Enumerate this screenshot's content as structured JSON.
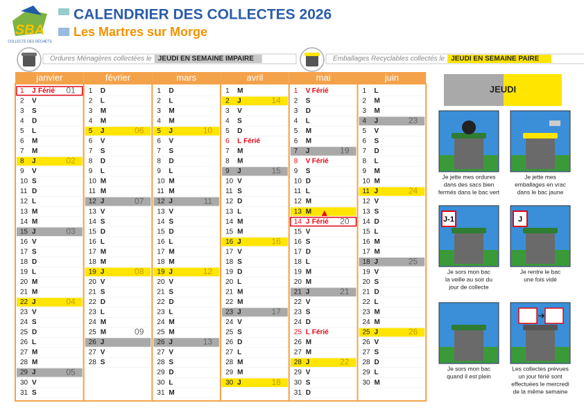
{
  "header": {
    "logo": "SBA",
    "logo_caption": "COLLECTE DES DÉCHETS",
    "title": "CALENDRIER DES COLLECTES 2026",
    "subtitle": "Les Martres sur Morge"
  },
  "legend": [
    {
      "text": "Ordures Ménagères collectées le",
      "day": "JEUDI EN SEMAINE IMPAIRE",
      "kind": "om"
    },
    {
      "text": "Emballages Recyclables collectés le",
      "day": "JEUDI EN SEMAINE PAIRE",
      "kind": "emb"
    }
  ],
  "months": [
    {
      "name": "janvier",
      "days": [
        {
          "day": 1,
          "wd": "J",
          "kind": "off-box",
          "note": "Férié",
          "week": "01"
        },
        [
          2,
          "V"
        ],
        [
          3,
          "S"
        ],
        [
          4,
          "D"
        ],
        [
          5,
          "L"
        ],
        [
          6,
          "M"
        ],
        [
          7,
          "M"
        ],
        {
          "day": 8,
          "wd": "J",
          "kind": "emb",
          "week": "02"
        },
        [
          9,
          "V"
        ],
        [
          10,
          "S"
        ],
        [
          11,
          "D"
        ],
        [
          12,
          "L"
        ],
        [
          13,
          "M"
        ],
        [
          14,
          "M"
        ],
        {
          "day": 15,
          "wd": "J",
          "kind": "om",
          "week": "03"
        },
        [
          16,
          "V"
        ],
        [
          17,
          "S"
        ],
        [
          18,
          "D"
        ],
        [
          19,
          "L"
        ],
        [
          20,
          "M"
        ],
        [
          21,
          "M"
        ],
        {
          "day": 22,
          "wd": "J",
          "kind": "emb",
          "week": "04"
        },
        [
          23,
          "V"
        ],
        [
          24,
          "S"
        ],
        [
          25,
          "D"
        ],
        [
          26,
          "L"
        ],
        [
          27,
          "M"
        ],
        [
          28,
          "M"
        ],
        {
          "day": 29,
          "wd": "J",
          "kind": "om",
          "week": "05"
        },
        [
          30,
          "V"
        ],
        [
          31,
          "S"
        ]
      ]
    },
    {
      "name": "février",
      "days": [
        [
          1,
          "D"
        ],
        [
          2,
          "L"
        ],
        [
          3,
          "M"
        ],
        [
          4,
          "M"
        ],
        {
          "day": 5,
          "wd": "J",
          "kind": "emb",
          "week": "06"
        },
        [
          6,
          "V"
        ],
        [
          7,
          "S"
        ],
        [
          8,
          "D"
        ],
        [
          9,
          "L"
        ],
        [
          10,
          "M"
        ],
        [
          11,
          "M"
        ],
        {
          "day": 12,
          "wd": "J",
          "kind": "om",
          "week": "07"
        },
        [
          13,
          "V"
        ],
        [
          14,
          "S"
        ],
        [
          15,
          "D"
        ],
        [
          16,
          "L"
        ],
        [
          17,
          "M"
        ],
        [
          18,
          "M"
        ],
        {
          "day": 19,
          "wd": "J",
          "kind": "emb",
          "week": "08"
        },
        [
          20,
          "V"
        ],
        [
          21,
          "S"
        ],
        [
          22,
          "D"
        ],
        [
          23,
          "L"
        ],
        [
          24,
          "M"
        ],
        {
          "day": 25,
          "wd": "M",
          "week": "09"
        },
        {
          "day": 26,
          "wd": "J",
          "kind": "om"
        },
        [
          27,
          "V"
        ],
        [
          28,
          "S"
        ]
      ]
    },
    {
      "name": "mars",
      "days": [
        [
          1,
          "D"
        ],
        [
          2,
          "L"
        ],
        [
          3,
          "M"
        ],
        [
          4,
          "M"
        ],
        {
          "day": 5,
          "wd": "J",
          "kind": "emb",
          "week": "10"
        },
        [
          6,
          "V"
        ],
        [
          7,
          "S"
        ],
        [
          8,
          "D"
        ],
        [
          9,
          "L"
        ],
        [
          10,
          "M"
        ],
        [
          11,
          "M"
        ],
        {
          "day": 12,
          "wd": "J",
          "kind": "om",
          "week": "11"
        },
        [
          13,
          "V"
        ],
        [
          14,
          "S"
        ],
        [
          15,
          "D"
        ],
        [
          16,
          "L"
        ],
        [
          17,
          "M"
        ],
        [
          18,
          "M"
        ],
        {
          "day": 19,
          "wd": "J",
          "kind": "emb",
          "week": "12"
        },
        [
          20,
          "V"
        ],
        [
          21,
          "S"
        ],
        [
          22,
          "D"
        ],
        [
          23,
          "L"
        ],
        [
          24,
          "M"
        ],
        [
          25,
          "M"
        ],
        {
          "day": 26,
          "wd": "J",
          "kind": "om",
          "week": "13"
        },
        [
          27,
          "V"
        ],
        [
          28,
          "S"
        ],
        [
          29,
          "D"
        ],
        [
          30,
          "L"
        ],
        [
          31,
          "M"
        ]
      ]
    },
    {
      "name": "avril",
      "days": [
        [
          1,
          "M"
        ],
        {
          "day": 2,
          "wd": "J",
          "kind": "emb",
          "week": "14"
        },
        [
          3,
          "V"
        ],
        [
          4,
          "S"
        ],
        [
          5,
          "D"
        ],
        {
          "day": 6,
          "wd": "L",
          "kind": "off",
          "note": "Férié"
        },
        [
          7,
          "M"
        ],
        [
          8,
          "M"
        ],
        {
          "day": 9,
          "wd": "J",
          "kind": "om",
          "week": "15"
        },
        [
          10,
          "V"
        ],
        [
          11,
          "S"
        ],
        [
          12,
          "D"
        ],
        [
          13,
          "L"
        ],
        [
          14,
          "M"
        ],
        [
          15,
          "M"
        ],
        {
          "day": 16,
          "wd": "J",
          "kind": "emb",
          "week": "16"
        },
        [
          17,
          "V"
        ],
        [
          18,
          "S"
        ],
        [
          19,
          "D"
        ],
        [
          20,
          "L"
        ],
        [
          21,
          "M"
        ],
        [
          22,
          "M"
        ],
        {
          "day": 23,
          "wd": "J",
          "kind": "om",
          "week": "17"
        },
        [
          24,
          "V"
        ],
        [
          25,
          "S"
        ],
        [
          26,
          "D"
        ],
        [
          27,
          "L"
        ],
        [
          28,
          "M"
        ],
        [
          29,
          "M"
        ],
        {
          "day": 30,
          "wd": "J",
          "kind": "emb",
          "week": "18"
        }
      ]
    },
    {
      "name": "mai",
      "days": [
        {
          "day": 1,
          "wd": "V",
          "kind": "off",
          "note": "Férié"
        },
        [
          2,
          "S"
        ],
        [
          3,
          "D"
        ],
        [
          4,
          "L"
        ],
        [
          5,
          "M"
        ],
        [
          6,
          "M"
        ],
        {
          "day": 7,
          "wd": "J",
          "kind": "om",
          "week": "19"
        },
        {
          "day": 8,
          "wd": "V",
          "kind": "off",
          "note": "Férié"
        },
        [
          9,
          "S"
        ],
        [
          10,
          "D"
        ],
        [
          11,
          "L"
        ],
        [
          12,
          "M"
        ],
        {
          "day": 13,
          "wd": "M",
          "kind": "emb-move"
        },
        {
          "day": 14,
          "wd": "J",
          "kind": "off-box",
          "note": "Férié",
          "week": "20"
        },
        [
          15,
          "V"
        ],
        [
          16,
          "S"
        ],
        [
          17,
          "D"
        ],
        [
          18,
          "L"
        ],
        [
          19,
          "M"
        ],
        [
          20,
          "M"
        ],
        {
          "day": 21,
          "wd": "J",
          "kind": "om",
          "week": "21"
        },
        [
          22,
          "V"
        ],
        [
          23,
          "S"
        ],
        [
          24,
          "D"
        ],
        {
          "day": 25,
          "wd": "L",
          "kind": "off",
          "note": "Férié"
        },
        [
          26,
          "M"
        ],
        [
          27,
          "M"
        ],
        {
          "day": 28,
          "wd": "J",
          "kind": "emb",
          "week": "22"
        },
        [
          29,
          "V"
        ],
        [
          30,
          "S"
        ],
        [
          31,
          "D"
        ]
      ]
    },
    {
      "name": "juin",
      "days": [
        [
          1,
          "L"
        ],
        [
          2,
          "M"
        ],
        [
          3,
          "M"
        ],
        {
          "day": 4,
          "wd": "J",
          "kind": "om",
          "week": "23"
        },
        [
          5,
          "V"
        ],
        [
          6,
          "S"
        ],
        [
          7,
          "D"
        ],
        [
          8,
          "L"
        ],
        [
          9,
          "M"
        ],
        [
          10,
          "M"
        ],
        {
          "day": 11,
          "wd": "J",
          "kind": "emb",
          "week": "24"
        },
        [
          12,
          "V"
        ],
        [
          13,
          "S"
        ],
        [
          14,
          "D"
        ],
        [
          15,
          "L"
        ],
        [
          16,
          "M"
        ],
        [
          17,
          "M"
        ],
        {
          "day": 18,
          "wd": "J",
          "kind": "om",
          "week": "25"
        },
        [
          19,
          "V"
        ],
        [
          20,
          "S"
        ],
        [
          21,
          "D"
        ],
        [
          22,
          "L"
        ],
        [
          23,
          "M"
        ],
        [
          24,
          "M"
        ],
        {
          "day": 25,
          "wd": "J",
          "kind": "emb",
          "week": "26"
        },
        [
          26,
          "V"
        ],
        [
          27,
          "S"
        ],
        [
          28,
          "D"
        ],
        [
          29,
          "L"
        ],
        [
          30,
          "M"
        ]
      ]
    }
  ],
  "panel": {
    "banner": "JEUDI",
    "steps": [
      {
        "caption": [
          "Je jette mes ordures",
          "dans des sacs bien",
          "fermés dans le bac vert"
        ]
      },
      {
        "caption": [
          "Je jette mes",
          "emballages en vrac",
          "dans le bac jaune"
        ]
      },
      {
        "tag": "J-1",
        "caption": [
          "Je sors mon bac",
          "la veille au soir du",
          "jour de collecte"
        ]
      },
      {
        "tag": "J",
        "caption": [
          "Je rentre le bac",
          "une fois vidé"
        ]
      },
      {
        "caption": [
          "Je sors mon bac",
          "quand il est plein"
        ]
      },
      {
        "caption": [
          "Les collectes prévues",
          "un jour férié sont",
          "effectuées le mercredi",
          "de la même semaine"
        ]
      }
    ]
  }
}
